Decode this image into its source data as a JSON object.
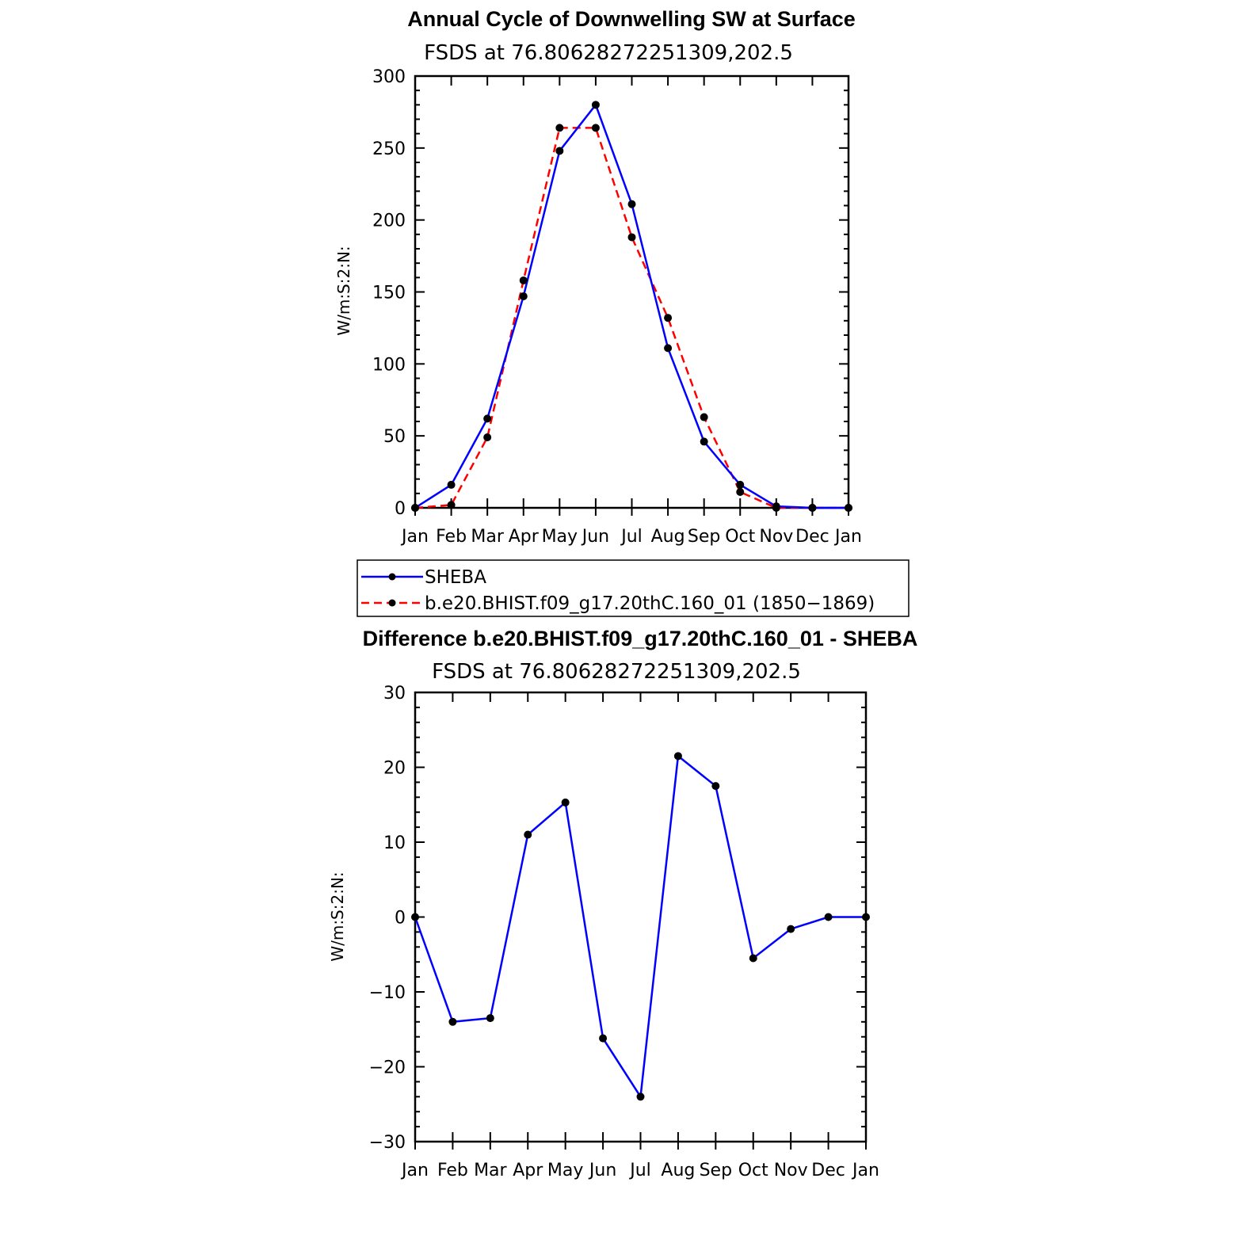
{
  "chart_data": [
    {
      "type": "line",
      "title": "Annual Cycle of Downwelling SW at Surface",
      "subtitle": "FSDS at 76.80628272251309,202.5",
      "ylabel": "W/m:S:2:N:",
      "xlabel": "",
      "ylim": [
        0,
        300
      ],
      "yticks": [
        0,
        50,
        100,
        150,
        200,
        250,
        300
      ],
      "categories": [
        "Jan",
        "Feb",
        "Mar",
        "Apr",
        "May",
        "Jun",
        "Jul",
        "Aug",
        "Sep",
        "Oct",
        "Nov",
        "Dec",
        "Jan"
      ],
      "series": [
        {
          "name": "SHEBA",
          "color": "#0000ff",
          "dash": "solid",
          "values": [
            0,
            16,
            62,
            147,
            248,
            280,
            211,
            111,
            46,
            16,
            1,
            0,
            0
          ]
        },
        {
          "name": "b.e20.BHIST.f09_g17.20thC.160_01 (1850−1869)",
          "color": "#ff0000",
          "dash": "dashed",
          "values": [
            0,
            2,
            49,
            158,
            264,
            264,
            188,
            132,
            63,
            11,
            0,
            0,
            0
          ]
        }
      ],
      "grid": false,
      "legend_position": "below"
    },
    {
      "type": "line",
      "title": "Difference b.e20.BHIST.f09_g17.20thC.160_01 - SHEBA",
      "subtitle": "FSDS at 76.80628272251309,202.5",
      "ylabel": "W/m:S:2:N:",
      "xlabel": "",
      "ylim": [
        -30,
        30
      ],
      "yticks": [
        -30,
        -20,
        -10,
        0,
        10,
        20,
        30
      ],
      "ytick_labels": [
        "−30",
        "−20",
        "−10",
        "0",
        "10",
        "20",
        "30"
      ],
      "categories": [
        "Jan",
        "Feb",
        "Mar",
        "Apr",
        "May",
        "Jun",
        "Jul",
        "Aug",
        "Sep",
        "Oct",
        "Nov",
        "Dec",
        "Jan"
      ],
      "series": [
        {
          "color": "#0000ff",
          "dash": "solid",
          "values": [
            0,
            -14,
            -13.5,
            11,
            15.3,
            -16.2,
            -24,
            21.5,
            17.5,
            -5.5,
            -1.6,
            0,
            0
          ]
        }
      ],
      "grid": false
    }
  ]
}
